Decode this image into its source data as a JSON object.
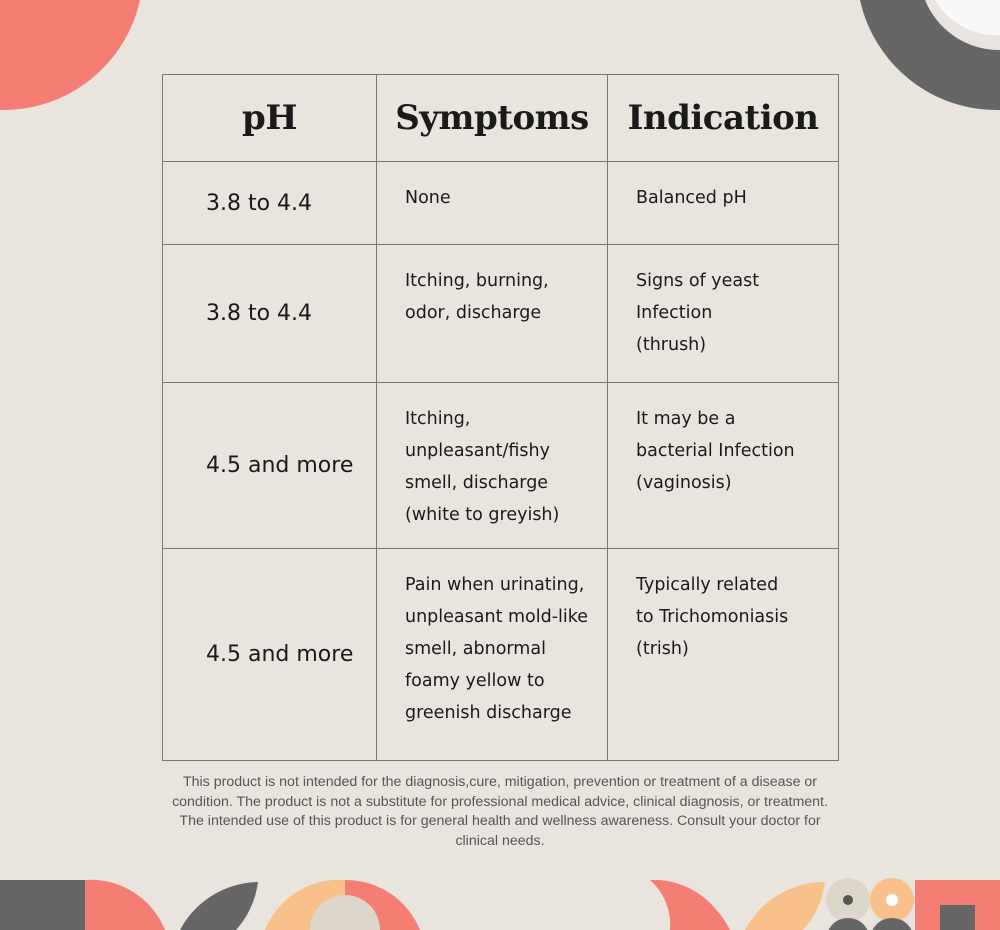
{
  "colors": {
    "background": "#e9e5de",
    "coral": "#f47d74",
    "charcoal": "#666666",
    "peach": "#f8c08b",
    "cream": "#ddd6cb",
    "text": "#1a1a1a",
    "disclaimer_text": "#555555",
    "grid_line": "#7a7672"
  },
  "table": {
    "headers": [
      "pH",
      "Symptoms",
      "Indication"
    ],
    "rows": [
      {
        "ph": "3.8 to 4.4",
        "symptoms": [
          "None"
        ],
        "indication": [
          "Balanced pH"
        ]
      },
      {
        "ph": "3.8 to 4.4",
        "symptoms": [
          "Itching, burning,",
          "odor, discharge"
        ],
        "indication": [
          "Signs of yeast",
          "Infection",
          "(thrush)"
        ]
      },
      {
        "ph": "4.5 and more",
        "symptoms": [
          "Itching,",
          "unpleasant/fishy",
          "smell, discharge",
          "(white to greyish)"
        ],
        "indication": [
          "It may be a",
          "bacterial Infection",
          "(vaginosis)"
        ]
      },
      {
        "ph": "4.5 and more",
        "symptoms": [
          "Pain when urinating,",
          "unpleasant mold-like",
          "smell, abnormal",
          "foamy yellow to",
          "greenish discharge"
        ],
        "indication": [
          "Typically related",
          "to Trichomoniasis",
          "(trish)"
        ]
      }
    ]
  },
  "disclaimer": "This product is not intended for the diagnosis,cure, mitigation, prevention or treatment of a disease or condition. The product is not a substitute for professional  medical advice, clinical diagnosis, or treatment. The intended use of this product is for general health and wellness awareness. Consult your doctor for clinical needs."
}
